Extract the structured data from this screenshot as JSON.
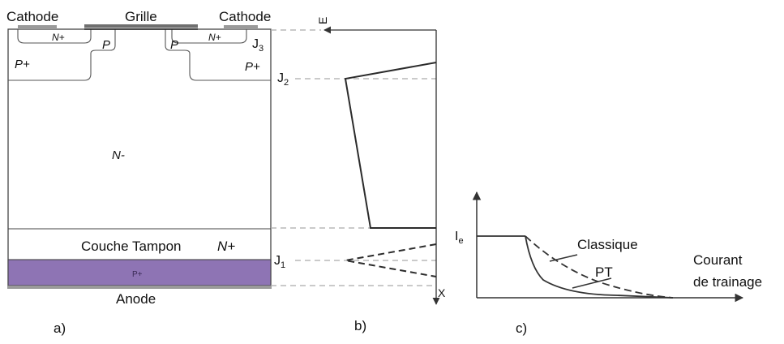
{
  "colors": {
    "stroke": "#444444",
    "dark_line": "#2b2b2b",
    "metal": "#9a9a9a",
    "gate": "#6f6f6f",
    "p_plus_fill": "#8e74b4",
    "guide": "#aaaaaa"
  },
  "panel_a": {
    "label": "a)",
    "cathode_left": "Cathode",
    "grille": "Grille",
    "cathode_right": "Cathode",
    "n_plus_left": "N+",
    "n_plus_right": "N+",
    "p_left": "P",
    "p_right": "P",
    "p_plus_left": "P+",
    "p_plus_right": "P+",
    "j3": "J",
    "j3_sub": "3",
    "j2": "J",
    "j2_sub": "2",
    "j1": "J",
    "j1_sub": "1",
    "n_minus": "N-",
    "couche_tampon": "Couche Tampon",
    "couche_tampon_n_plus": "N+",
    "p_plus_anode_layer": "P+",
    "anode": "Anode"
  },
  "panel_b": {
    "label": "b)",
    "axis_e": "E",
    "axis_x": "X"
  },
  "panel_c": {
    "label": "c)",
    "ie": "I",
    "ie_sub": "e",
    "classique": "Classique",
    "pt": "PT",
    "courant_line1": "Courant",
    "courant_line2": "de trainage"
  }
}
